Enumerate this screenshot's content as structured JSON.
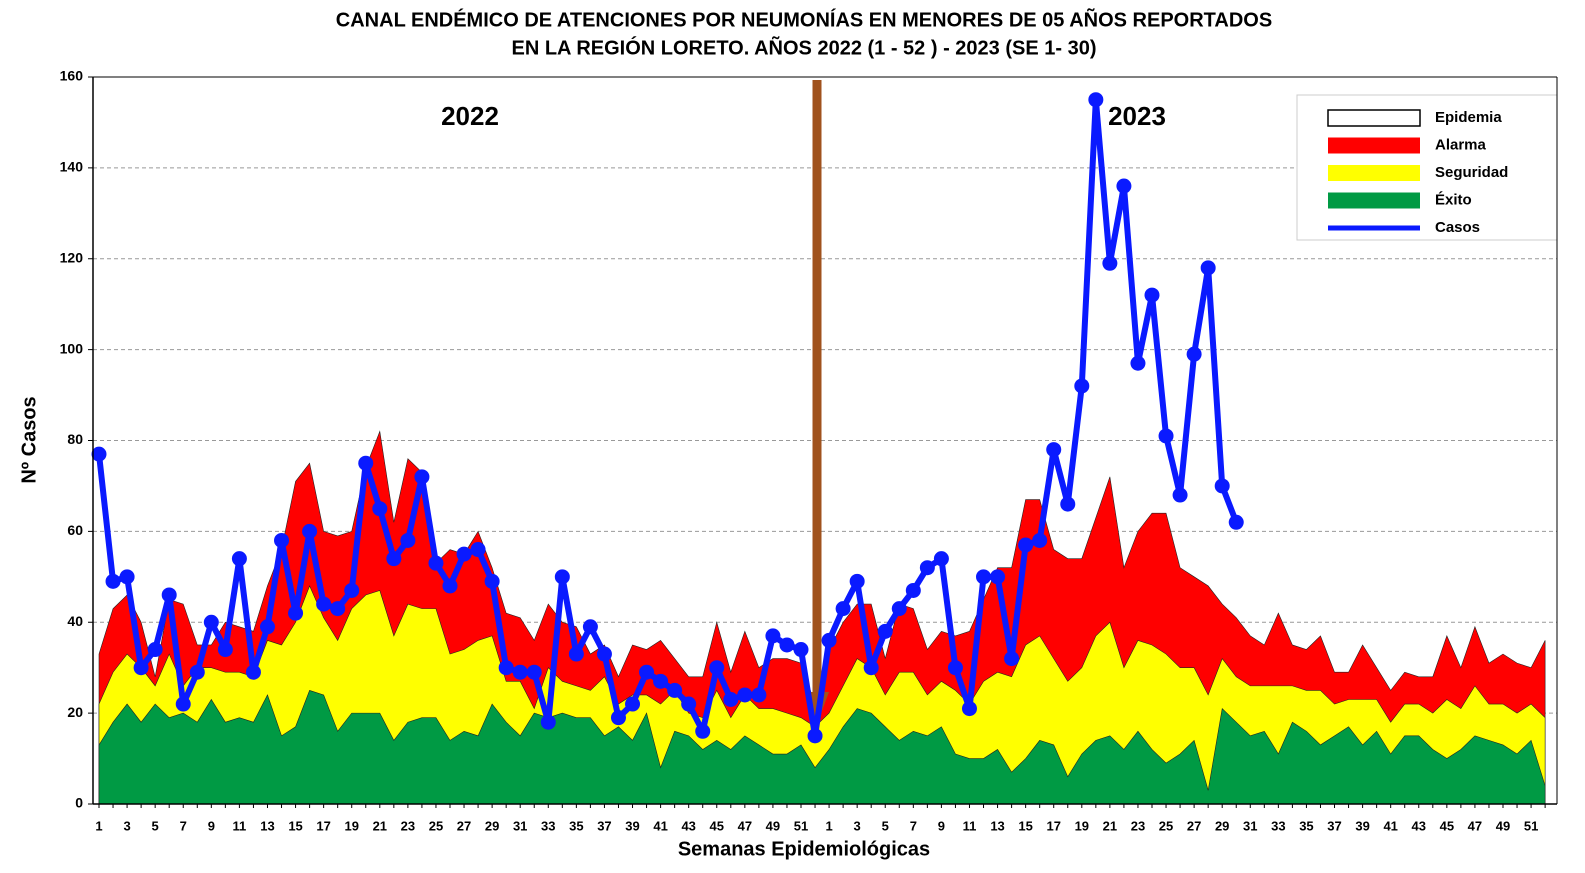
{
  "chart_data": {
    "type": "endemic-channel",
    "title": [
      "CANAL ENDÉMICO DE ATENCIONES POR NEUMONÍAS EN MENORES DE 05 AÑOS REPORTADOS",
      "EN LA REGIÓN LORETO. AÑOS 2022 (1 - 52 ) - 2023 (SE 1- 30)"
    ],
    "x_label": "Semanas Epidemiológicas",
    "y_label": "Nº Casos",
    "annotations": [
      "2022",
      "2023"
    ],
    "categories": [
      "1",
      null,
      "3",
      null,
      "5",
      null,
      "7",
      null,
      "9",
      null,
      "11",
      null,
      "13",
      null,
      "15",
      null,
      "17",
      null,
      "19",
      null,
      "21",
      null,
      "23",
      null,
      "25",
      null,
      "27",
      null,
      "29",
      null,
      "31",
      null,
      "33",
      null,
      "35",
      null,
      "37",
      null,
      "39",
      null,
      "41",
      null,
      "43",
      null,
      "45",
      null,
      "47",
      null,
      "49",
      null,
      "51",
      null,
      "1",
      null,
      "3",
      null,
      "5",
      null,
      "7",
      null,
      "9",
      null,
      "11",
      null,
      "13",
      null,
      "15",
      null,
      "17",
      null,
      "19",
      null,
      "21",
      null,
      "23",
      null,
      "25",
      null,
      "27",
      null,
      "29",
      null,
      "31",
      null,
      "33",
      null,
      "35",
      null,
      "37",
      null,
      "39",
      null,
      "41",
      null,
      "43",
      null,
      "45",
      null,
      "47",
      null,
      "49",
      null,
      "51",
      null
    ],
    "ylim": [
      0,
      160
    ],
    "yticks": [
      0,
      20,
      40,
      60,
      80,
      100,
      120,
      140,
      160
    ],
    "grid": true,
    "legend": "upper right",
    "series": [
      {
        "name": "Epidemia",
        "color": "#ffffff",
        "style": "legend-only"
      },
      {
        "name": "Alarma",
        "color": "#ff0000",
        "style": "area",
        "values": [
          33,
          43,
          46,
          40,
          28,
          45,
          44,
          35,
          35,
          40,
          39,
          38,
          48,
          56,
          71,
          75,
          60,
          59,
          60,
          74,
          82,
          62,
          76,
          73,
          53,
          56,
          55,
          60,
          52,
          42,
          41,
          36,
          44,
          40,
          39,
          33,
          35,
          28,
          35,
          34,
          36,
          32,
          28,
          28,
          40,
          29,
          38,
          30,
          32,
          32,
          31,
          22,
          34,
          40,
          44,
          44,
          32,
          44,
          43,
          34,
          38,
          37,
          38,
          45,
          52,
          52,
          67,
          67,
          56,
          54,
          54,
          63,
          72,
          52,
          60,
          64,
          64,
          52,
          50,
          48,
          44,
          41,
          37,
          35,
          42,
          35,
          34,
          37,
          29,
          29,
          35,
          30,
          25,
          29,
          28,
          28,
          37,
          30,
          39,
          31,
          33,
          31,
          30,
          36
        ]
      },
      {
        "name": "Seguridad",
        "color": "#ffff00",
        "style": "area",
        "values": [
          22,
          29,
          33,
          30,
          26,
          33,
          26,
          30,
          30,
          29,
          29,
          28,
          36,
          35,
          40,
          48,
          41,
          36,
          43,
          46,
          47,
          37,
          44,
          43,
          43,
          33,
          34,
          36,
          37,
          27,
          27,
          21,
          30,
          27,
          26,
          25,
          28,
          22,
          24,
          24,
          22,
          25,
          20,
          19,
          25,
          19,
          24,
          21,
          21,
          20,
          19,
          17,
          20,
          26,
          32,
          30,
          24,
          29,
          29,
          24,
          27,
          25,
          22,
          27,
          29,
          28,
          35,
          37,
          32,
          27,
          30,
          37,
          40,
          30,
          36,
          35,
          33,
          30,
          30,
          24,
          32,
          28,
          26,
          26,
          26,
          26,
          25,
          25,
          22,
          23,
          23,
          23,
          18,
          22,
          22,
          20,
          23,
          21,
          26,
          22,
          22,
          20,
          22,
          19
        ]
      },
      {
        "name": "Éxito",
        "color": "#009a44",
        "style": "area",
        "values": [
          13,
          18,
          22,
          18,
          22,
          19,
          20,
          18,
          23,
          18,
          19,
          18,
          24,
          15,
          17,
          25,
          24,
          16,
          20,
          20,
          20,
          14,
          18,
          19,
          19,
          14,
          16,
          15,
          22,
          18,
          15,
          20,
          19,
          20,
          19,
          19,
          15,
          17,
          14,
          20,
          8,
          16,
          15,
          12,
          14,
          12,
          15,
          13,
          11,
          11,
          13,
          8,
          12,
          17,
          21,
          20,
          17,
          14,
          16,
          15,
          17,
          11,
          10,
          10,
          12,
          7,
          10,
          14,
          13,
          6,
          11,
          14,
          15,
          12,
          16,
          12,
          9,
          11,
          14,
          3,
          21,
          18,
          15,
          16,
          11,
          18,
          16,
          13,
          15,
          17,
          13,
          16,
          11,
          15,
          15,
          12,
          10,
          12,
          15,
          14,
          13,
          11,
          14,
          4
        ]
      },
      {
        "name": "Casos",
        "color": "#0a1aff",
        "style": "line",
        "values": [
          77,
          49,
          50,
          30,
          34,
          46,
          22,
          29,
          40,
          34,
          54,
          29,
          39,
          58,
          42,
          60,
          44,
          43,
          47,
          75,
          65,
          54,
          58,
          72,
          53,
          48,
          55,
          56,
          49,
          30,
          29,
          29,
          18,
          50,
          33,
          39,
          33,
          19,
          22,
          29,
          27,
          25,
          22,
          16,
          30,
          23,
          24,
          24,
          37,
          35,
          34,
          15,
          36,
          43,
          49,
          30,
          38,
          43,
          47,
          52,
          54,
          30,
          21,
          50,
          50,
          32,
          57,
          58,
          78,
          66,
          92,
          155,
          119,
          136,
          97,
          112,
          81,
          68,
          99,
          118,
          70,
          62,
          null,
          null,
          null,
          null,
          null,
          null,
          null,
          null,
          null,
          null,
          null,
          null,
          null,
          null,
          null,
          null,
          null,
          null,
          null,
          null,
          null,
          null
        ]
      }
    ]
  }
}
